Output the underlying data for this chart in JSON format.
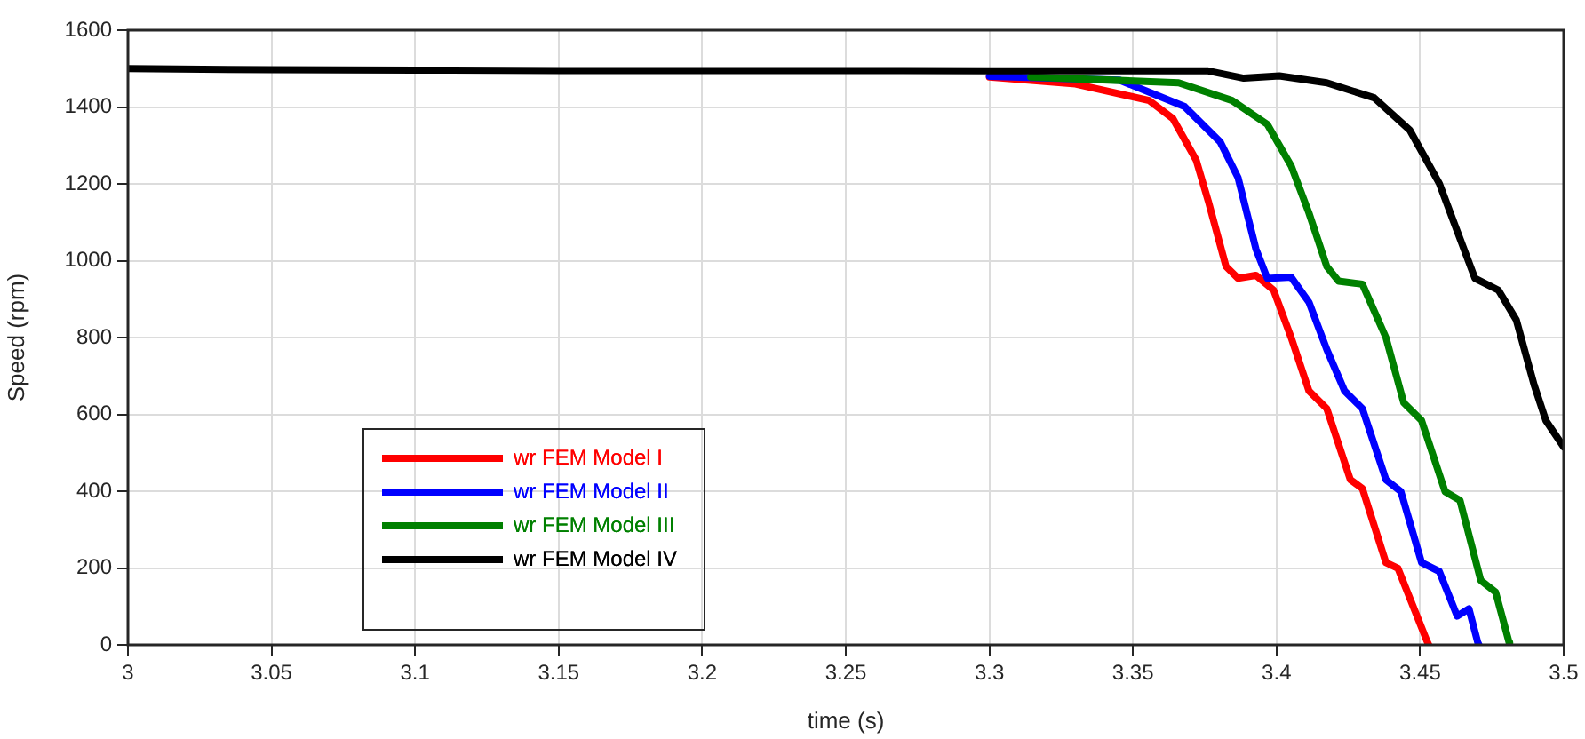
{
  "chart_data": {
    "type": "line",
    "xlabel": "time (s)",
    "ylabel": "Speed (rpm)",
    "xlim": [
      3,
      3.5
    ],
    "xticks": [
      3,
      3.05,
      3.1,
      3.15,
      3.2,
      3.25,
      3.3,
      3.35,
      3.4,
      3.45,
      3.5
    ],
    "ylim": [
      0,
      1600
    ],
    "yticks": [
      0,
      200,
      400,
      600,
      800,
      1000,
      1200,
      1400,
      1600
    ],
    "grid": true,
    "legend": "bottom left",
    "marker": "none",
    "line_style": "solid",
    "series": [
      {
        "name": "wr FEM Model I",
        "color": "#ff0000",
        "x": [
          3.3,
          3.33,
          3.3556,
          3.3639,
          3.372,
          3.3762,
          3.3824,
          3.3866,
          3.3928,
          3.399,
          3.4051,
          3.4113,
          3.4175,
          3.4257,
          3.4299,
          3.4381,
          3.4423,
          3.4526,
          3.453
        ],
        "values": [
          1478,
          1460,
          1417,
          1370,
          1262,
          1156,
          985,
          954,
          962,
          923,
          800,
          661,
          615,
          430,
          407,
          214,
          199,
          6,
          0
        ]
      },
      {
        "name": "wr FEM Model II",
        "color": "#0000ff",
        "x": [
          3.3,
          3.3453,
          3.368,
          3.3804,
          3.3866,
          3.3928,
          3.3968,
          3.4051,
          3.4113,
          3.4175,
          3.4237,
          3.4299,
          3.4381,
          3.4433,
          3.4505,
          3.4567,
          3.4629,
          3.467,
          3.4701,
          3.4705
        ],
        "values": [
          1480,
          1470,
          1401,
          1309,
          1216,
          1031,
          954,
          957,
          892,
          769,
          661,
          615,
          430,
          399,
          214,
          191,
          75,
          94,
          6,
          0
        ]
      },
      {
        "name": "wr FEM Model III",
        "color": "#008000",
        "x": [
          3.3144,
          3.3659,
          3.3845,
          3.3968,
          3.4051,
          3.4113,
          3.4175,
          3.4216,
          3.4299,
          3.4381,
          3.4443,
          3.4505,
          3.4587,
          3.4639,
          3.4711,
          3.4763,
          3.481,
          3.4812
        ],
        "values": [
          1478,
          1463,
          1417,
          1355,
          1247,
          1124,
          985,
          947,
          939,
          800,
          630,
          584,
          399,
          376,
          168,
          137,
          6,
          0
        ]
      },
      {
        "name": "wr FEM Model IV",
        "color": "#000000",
        "x": [
          3,
          3.05,
          3.1,
          3.15,
          3.2,
          3.25,
          3.3,
          3.3762,
          3.3886,
          3.401,
          3.4175,
          3.434,
          3.4464,
          3.4567,
          3.4629,
          3.4691,
          3.4773,
          3.4835,
          3.4897,
          3.4938,
          3.5
        ],
        "values": [
          1500,
          1497,
          1496,
          1495,
          1495,
          1495,
          1494,
          1494,
          1475,
          1481,
          1463,
          1424,
          1340,
          1201,
          1077,
          954,
          923,
          846,
          677,
          584,
          515
        ]
      }
    ]
  }
}
